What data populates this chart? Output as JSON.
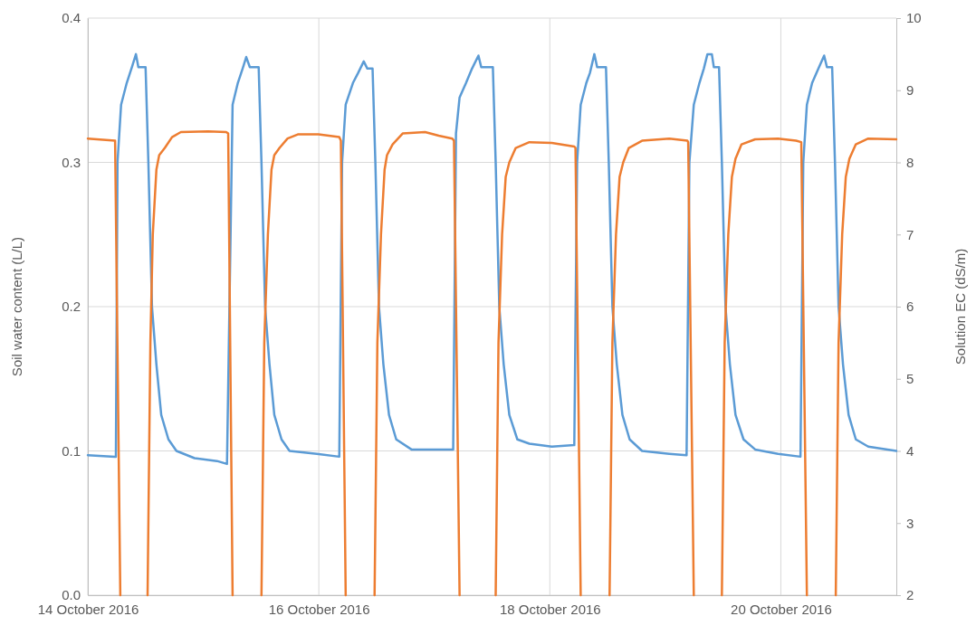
{
  "chart_data": {
    "type": "line",
    "xlabel": null,
    "ylabel": "Soil water content (L/L)",
    "y2label": "Solution EC (dS/m)",
    "xlim": [
      "2016-10-14",
      "2016-10-21"
    ],
    "xticks": [
      {
        "value": "2016-10-14",
        "label": "14 October 2016"
      },
      {
        "value": "2016-10-16",
        "label": "16 October 2016"
      },
      {
        "value": "2016-10-18",
        "label": "18 October 2016"
      },
      {
        "value": "2016-10-20",
        "label": "20 October 2016"
      }
    ],
    "ylim": [
      0,
      0.4
    ],
    "yticks": [
      {
        "value": 0,
        "label": "0.0"
      },
      0.1,
      0.2,
      0.3,
      0.4
    ],
    "y2lim": [
      2,
      10
    ],
    "y2ticks": [
      2,
      3,
      4,
      5,
      6,
      7,
      8,
      9,
      10
    ],
    "grid": true,
    "line_style": "solid",
    "series": [
      {
        "color": "#5b9bd5",
        "x": [
          "2016-10-14T00:00",
          "2016-10-14T05:40",
          "2016-10-14T05:50",
          "2016-10-14T06:10",
          "2016-10-14T06:55",
          "2016-10-14T08:05",
          "2016-10-14T09:10",
          "2016-10-14T10:00",
          "2016-10-14T10:30",
          "2016-10-14T12:00",
          "2016-10-14T12:35",
          "2016-10-14T13:20",
          "2016-10-14T14:15",
          "2016-10-14T15:15",
          "2016-10-14T16:45",
          "2016-10-14T18:25",
          "2016-10-14T22:10",
          "2016-10-15T02:50",
          "2016-10-15T04:55",
          "2016-10-15T06:05",
          "2016-10-15T07:10",
          "2016-10-15T08:10",
          "2016-10-15T08:55",
          "2016-10-15T09:40",
          "2016-10-15T11:30",
          "2016-10-15T12:05",
          "2016-10-15T12:50",
          "2016-10-15T13:45",
          "2016-10-15T14:45",
          "2016-10-15T16:15",
          "2016-10-15T17:55",
          "2016-10-15T23:35",
          "2016-10-16T04:15",
          "2016-10-16T04:50",
          "2016-10-16T05:35",
          "2016-10-16T07:05",
          "2016-10-16T08:10",
          "2016-10-16T09:20",
          "2016-10-16T10:05",
          "2016-10-16T11:10",
          "2016-10-16T11:45",
          "2016-10-16T12:30",
          "2016-10-16T13:25",
          "2016-10-16T14:35",
          "2016-10-16T16:05",
          "2016-10-16T19:15",
          "2016-10-17T03:55",
          "2016-10-17T04:30",
          "2016-10-17T05:15",
          "2016-10-17T06:35",
          "2016-10-17T07:50",
          "2016-10-17T09:10",
          "2016-10-17T09:45",
          "2016-10-17T12:10",
          "2016-10-17T12:45",
          "2016-10-17T13:30",
          "2016-10-17T14:25",
          "2016-10-17T15:35",
          "2016-10-17T17:15",
          "2016-10-17T19:45",
          "2016-10-18T00:25",
          "2016-10-18T05:05",
          "2016-10-18T05:40",
          "2016-10-18T06:25",
          "2016-10-18T07:35",
          "2016-10-18T08:20",
          "2016-10-18T09:15",
          "2016-10-18T09:50",
          "2016-10-18T11:40",
          "2016-10-18T12:15",
          "2016-10-18T13:00",
          "2016-10-18T13:55",
          "2016-10-18T15:05",
          "2016-10-18T16:35",
          "2016-10-18T19:10",
          "2016-10-19T00:50",
          "2016-10-19T04:25",
          "2016-10-19T05:00",
          "2016-10-19T05:55",
          "2016-10-19T07:05",
          "2016-10-19T08:00",
          "2016-10-19T08:45",
          "2016-10-19T09:40",
          "2016-10-19T10:05",
          "2016-10-19T11:10",
          "2016-10-19T11:45",
          "2016-10-19T12:30",
          "2016-10-19T13:25",
          "2016-10-19T14:35",
          "2016-10-19T16:15",
          "2016-10-19T18:40",
          "2016-10-19T23:25",
          "2016-10-20T04:05",
          "2016-10-20T04:40",
          "2016-10-20T05:25",
          "2016-10-20T06:30",
          "2016-10-20T07:40",
          "2016-10-20T09:00",
          "2016-10-20T09:35",
          "2016-10-20T10:40",
          "2016-10-20T11:15",
          "2016-10-20T12:00",
          "2016-10-20T12:55",
          "2016-10-20T14:05",
          "2016-10-20T15:35",
          "2016-10-20T18:10",
          "2016-10-21T00:00"
        ],
        "values": [
          0.097,
          0.096,
          0.096,
          0.3,
          0.34,
          0.355,
          0.366,
          0.375,
          0.366,
          0.366,
          0.3,
          0.2,
          0.16,
          0.125,
          0.108,
          0.1,
          0.095,
          0.093,
          0.091,
          0.34,
          0.355,
          0.365,
          0.373,
          0.366,
          0.366,
          0.3,
          0.2,
          0.16,
          0.125,
          0.108,
          0.1,
          0.098,
          0.096,
          0.3,
          0.34,
          0.355,
          0.362,
          0.37,
          0.365,
          0.365,
          0.3,
          0.2,
          0.16,
          0.125,
          0.108,
          0.101,
          0.101,
          0.32,
          0.345,
          0.355,
          0.365,
          0.374,
          0.366,
          0.366,
          0.3,
          0.2,
          0.16,
          0.125,
          0.108,
          0.105,
          0.103,
          0.104,
          0.3,
          0.34,
          0.355,
          0.362,
          0.375,
          0.366,
          0.366,
          0.3,
          0.2,
          0.16,
          0.125,
          0.108,
          0.1,
          0.098,
          0.097,
          0.3,
          0.34,
          0.355,
          0.365,
          0.375,
          0.375,
          0.366,
          0.366,
          0.3,
          0.2,
          0.16,
          0.125,
          0.108,
          0.101,
          0.098,
          0.096,
          0.3,
          0.34,
          0.355,
          0.364,
          0.374,
          0.366,
          0.366,
          0.3,
          0.2,
          0.16,
          0.125,
          0.108,
          0.103,
          0.1
        ]
      },
      {
        "color": "#ed7d31",
        "axis": "y2",
        "x": [
          "2016-10-14T00:00",
          "2016-10-14T05:40",
          "2016-10-14T06:45",
          "2016-10-14T09:00",
          "2016-10-14T12:25",
          "2016-10-14T13:00",
          "2016-10-14T13:30",
          "2016-10-14T14:15",
          "2016-10-14T14:50",
          "2016-10-14T16:00",
          "2016-10-14T17:30",
          "2016-10-14T19:20",
          "2016-10-15T01:00",
          "2016-10-15T04:45",
          "2016-10-15T05:10",
          "2016-10-15T06:05",
          "2016-10-15T09:00",
          "2016-10-15T12:05",
          "2016-10-15T12:40",
          "2016-10-15T13:25",
          "2016-10-15T14:10",
          "2016-10-15T14:45",
          "2016-10-15T15:50",
          "2016-10-15T17:30",
          "2016-10-15T19:45",
          "2016-10-15T23:55",
          "2016-10-16T04:15",
          "2016-10-16T04:35",
          "2016-10-16T05:35",
          "2016-10-16T09:00",
          "2016-10-16T11:35",
          "2016-10-16T12:10",
          "2016-10-16T12:55",
          "2016-10-16T13:40",
          "2016-10-16T14:10",
          "2016-10-16T15:20",
          "2016-10-16T17:25",
          "2016-10-16T22:05",
          "2016-10-17T00:55",
          "2016-10-17T03:45",
          "2016-10-17T04:05",
          "2016-10-17T05:15",
          "2016-10-17T09:00",
          "2016-10-17T12:45",
          "2016-10-17T13:20",
          "2016-10-17T14:05",
          "2016-10-17T14:50",
          "2016-10-17T15:35",
          "2016-10-17T16:55",
          "2016-10-17T19:45",
          "2016-10-18T00:25",
          "2016-10-18T05:05",
          "2016-10-18T05:20",
          "2016-10-18T06:25",
          "2016-10-18T09:00",
          "2016-10-18T12:25",
          "2016-10-18T13:00",
          "2016-10-18T13:45",
          "2016-10-18T14:30",
          "2016-10-18T15:15",
          "2016-10-18T16:25",
          "2016-10-18T19:10",
          "2016-10-19T00:50",
          "2016-10-19T04:35",
          "2016-10-19T04:45",
          "2016-10-19T05:55",
          "2016-10-19T09:00",
          "2016-10-19T11:45",
          "2016-10-19T12:20",
          "2016-10-19T13:05",
          "2016-10-19T13:50",
          "2016-10-19T14:35",
          "2016-10-19T15:50",
          "2016-10-19T18:40",
          "2016-10-19T23:25",
          "2016-10-20T03:10",
          "2016-10-20T04:15",
          "2016-10-20T05:25",
          "2016-10-20T09:00",
          "2016-10-20T11:25",
          "2016-10-20T12:00",
          "2016-10-20T12:45",
          "2016-10-20T13:30",
          "2016-10-20T14:15",
          "2016-10-20T15:35",
          "2016-10-20T18:10",
          "2016-10-21T00:00"
        ],
        "values": [
          8.33,
          8.3,
          2,
          null,
          2,
          5.5,
          7.0,
          7.9,
          8.1,
          8.2,
          8.35,
          8.42,
          8.43,
          8.42,
          8.4,
          2,
          null,
          2,
          5.5,
          7.0,
          7.9,
          8.1,
          8.2,
          8.33,
          8.39,
          8.39,
          8.35,
          8.3,
          2,
          null,
          2,
          5.5,
          7.0,
          7.9,
          8.1,
          8.25,
          8.4,
          8.42,
          8.37,
          8.33,
          8.3,
          2,
          null,
          2,
          5.5,
          7.0,
          7.8,
          8.0,
          8.2,
          8.28,
          8.27,
          8.22,
          8.2,
          2,
          null,
          2,
          5.5,
          7.0,
          7.8,
          8.0,
          8.2,
          8.3,
          8.33,
          8.3,
          8.28,
          2,
          null,
          2,
          5.5,
          7.0,
          7.8,
          8.05,
          8.25,
          8.32,
          8.33,
          8.3,
          8.28,
          2,
          null,
          2,
          5.5,
          7.0,
          7.8,
          8.05,
          8.25,
          8.33,
          8.32
        ]
      }
    ]
  }
}
